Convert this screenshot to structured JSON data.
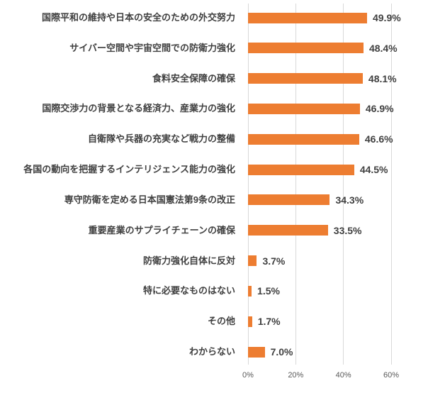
{
  "chart_data": {
    "type": "bar",
    "orientation": "horizontal",
    "title": "",
    "xlabel": "",
    "ylabel": "",
    "xlim": [
      0,
      60
    ],
    "grid": true,
    "categories": [
      "国際平和の維持や日本の安全のための外交努力",
      "サイバー空間や宇宙空間での防衛力強化",
      "食料安全保障の確保",
      "国際交渉力の背景となる経済力、産業力の強化",
      "自衛隊や兵器の充実など戦力の整備",
      "各国の動向を把握するインテリジェンス能力の強化",
      "専守防衛を定める日本国憲法第9条の改正",
      "重要産業のサプライチェーンの確保",
      "防衛力強化自体に反対",
      "特に必要なものはない",
      "その他",
      "わからない"
    ],
    "values": [
      49.9,
      48.4,
      48.1,
      46.9,
      46.6,
      44.5,
      34.3,
      33.5,
      3.7,
      1.5,
      1.7,
      7.0
    ],
    "value_labels": [
      "49.9%",
      "48.4%",
      "48.1%",
      "46.9%",
      "46.6%",
      "44.5%",
      "34.3%",
      "33.5%",
      "3.7%",
      "1.5%",
      "1.7%",
      "7.0%"
    ],
    "x_ticks": [
      "0%",
      "20%",
      "40%",
      "60%"
    ],
    "x_tick_values": [
      0,
      20,
      40,
      60
    ],
    "colors": {
      "bar": "#ED7D31",
      "gridline": "#D9D9D9",
      "category_label": "#404040",
      "value_label": "#404040",
      "tick_label": "#595959",
      "background": "#FFFFFF"
    }
  }
}
